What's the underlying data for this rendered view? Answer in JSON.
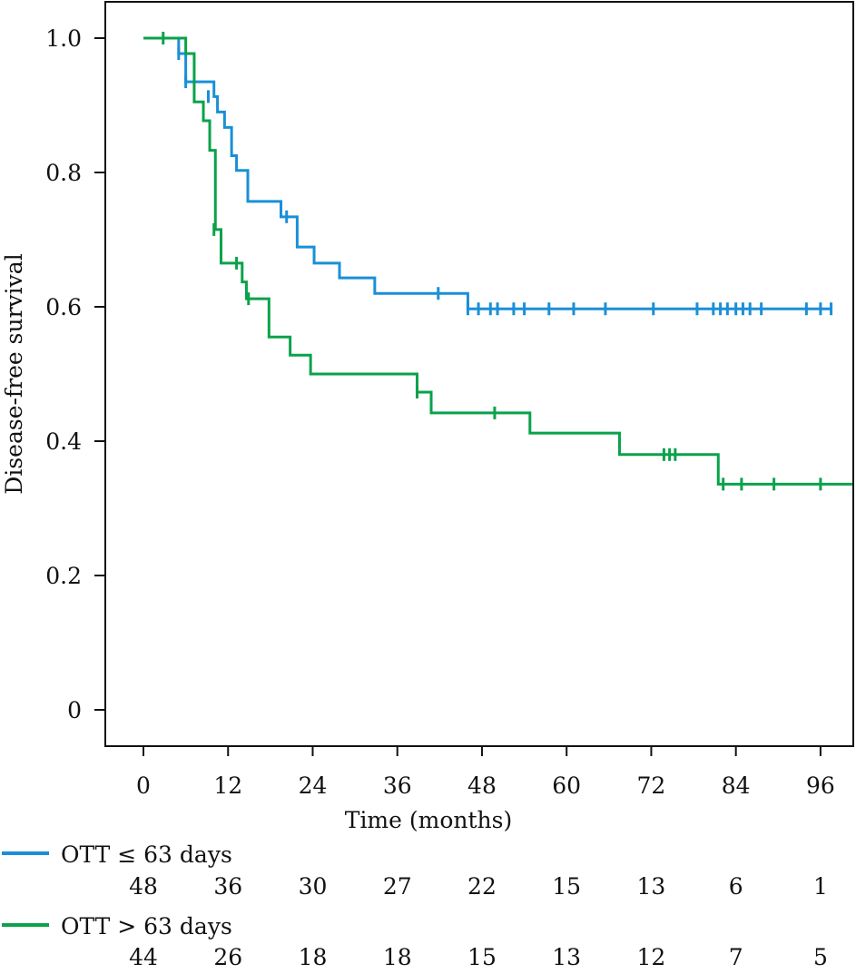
{
  "chart_data": {
    "type": "line",
    "subtype": "kaplan-meier step",
    "title": "",
    "xlabel": "Time (months)",
    "ylabel": "Disease-free survival",
    "xlim": [
      -5.5,
      100.5
    ],
    "ylim": [
      -0.055,
      1.055
    ],
    "xticks": [
      0,
      12,
      24,
      36,
      48,
      60,
      72,
      84,
      96
    ],
    "xtick_labels": [
      "0",
      "12",
      "24",
      "36",
      "48",
      "60",
      "72",
      "84",
      "96"
    ],
    "yticks": [
      0,
      0.2,
      0.4,
      0.6,
      0.8,
      1.0
    ],
    "ytick_labels": [
      "0",
      "0.2",
      "0.4",
      "0.6",
      "0.8",
      "1.0"
    ],
    "grid": false,
    "legend_position": "bottom-left",
    "series": [
      {
        "name": "OTT ≤ 63 days",
        "color": "#1a8fd8",
        "steps": [
          [
            0,
            1.0
          ],
          [
            5,
            0.977
          ],
          [
            6,
            0.935
          ],
          [
            10,
            0.913
          ],
          [
            10.5,
            0.89
          ],
          [
            11.5,
            0.867
          ],
          [
            12.5,
            0.825
          ],
          [
            13.2,
            0.803
          ],
          [
            14.8,
            0.757
          ],
          [
            19.5,
            0.734
          ],
          [
            21.8,
            0.689
          ],
          [
            24.2,
            0.665
          ],
          [
            27.8,
            0.643
          ],
          [
            32.8,
            0.62
          ],
          [
            46,
            0.597
          ],
          [
            97.5,
            0.597
          ]
        ],
        "censored": [
          [
            5,
            0.977
          ],
          [
            6,
            0.935
          ],
          [
            9.2,
            0.913
          ],
          [
            20.3,
            0.734
          ],
          [
            41.8,
            0.62
          ],
          [
            46,
            0.597
          ],
          [
            47.5,
            0.597
          ],
          [
            49.2,
            0.597
          ],
          [
            50.2,
            0.597
          ],
          [
            52.5,
            0.597
          ],
          [
            54,
            0.597
          ],
          [
            57.5,
            0.597
          ],
          [
            61,
            0.597
          ],
          [
            65.5,
            0.597
          ],
          [
            72.3,
            0.597
          ],
          [
            78.5,
            0.597
          ],
          [
            80.8,
            0.597
          ],
          [
            81.8,
            0.597
          ],
          [
            82.8,
            0.597
          ],
          [
            84,
            0.597
          ],
          [
            85,
            0.597
          ],
          [
            86,
            0.597
          ],
          [
            87.6,
            0.597
          ],
          [
            94,
            0.597
          ],
          [
            96,
            0.597
          ],
          [
            97.5,
            0.597
          ]
        ],
        "at_risk": [
          48,
          36,
          30,
          27,
          22,
          15,
          13,
          6,
          1
        ]
      },
      {
        "name": "OTT > 63 days",
        "color": "#0aa24a",
        "steps": [
          [
            0,
            1.0
          ],
          [
            6,
            0.977
          ],
          [
            7.2,
            0.905
          ],
          [
            8.5,
            0.877
          ],
          [
            9.4,
            0.833
          ],
          [
            10.2,
            0.715
          ],
          [
            11,
            0.665
          ],
          [
            14,
            0.637
          ],
          [
            14.6,
            0.612
          ],
          [
            17.8,
            0.555
          ],
          [
            20.8,
            0.528
          ],
          [
            23.7,
            0.5
          ],
          [
            38.8,
            0.473
          ],
          [
            40.8,
            0.442
          ],
          [
            54.8,
            0.412
          ],
          [
            67.5,
            0.38
          ],
          [
            81.5,
            0.336
          ],
          [
            100.5,
            0.336
          ]
        ],
        "censored": [
          [
            2.8,
            1.0
          ],
          [
            10,
            0.715
          ],
          [
            13.2,
            0.665
          ],
          [
            14.9,
            0.612
          ],
          [
            38.8,
            0.473
          ],
          [
            49.8,
            0.442
          ],
          [
            73.8,
            0.38
          ],
          [
            74.6,
            0.38
          ],
          [
            75.4,
            0.38
          ],
          [
            82.2,
            0.336
          ],
          [
            84.8,
            0.336
          ],
          [
            89.4,
            0.336
          ],
          [
            96,
            0.336
          ]
        ],
        "at_risk": [
          44,
          26,
          18,
          18,
          15,
          13,
          12,
          7,
          5
        ]
      }
    ]
  }
}
